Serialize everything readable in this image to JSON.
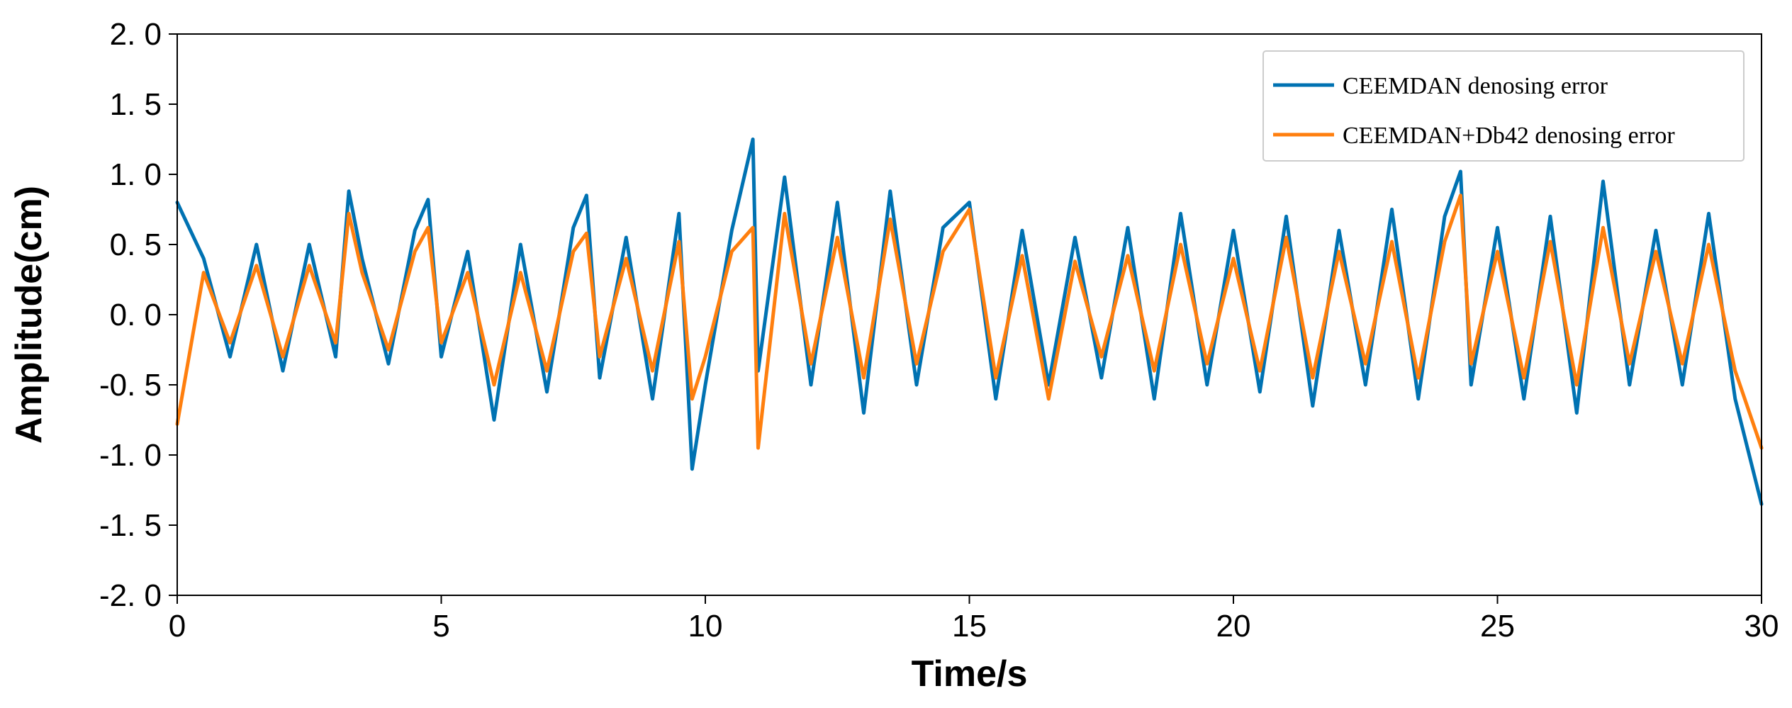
{
  "chart_data": {
    "type": "line",
    "title": "",
    "xlabel": "Time/s",
    "ylabel": "Amplitude(cm)",
    "xlim": [
      0,
      30
    ],
    "ylim": [
      -2.0,
      2.0
    ],
    "xticks": [
      0,
      5,
      10,
      15,
      20,
      25,
      30
    ],
    "xtick_labels": [
      "0",
      "5",
      "10",
      "15",
      "20",
      "25",
      "30"
    ],
    "yticks": [
      2.0,
      1.5,
      1.0,
      0.5,
      0.0,
      -0.5,
      -1.0,
      -1.5,
      -2.0
    ],
    "ytick_labels": [
      "2. 0",
      "1. 5",
      "1. 0",
      "0. 5",
      "0. 0",
      "-0. 5",
      "-1. 0",
      "-1. 5",
      "-2. 0"
    ],
    "grid": false,
    "legend_position": "top-right",
    "series": [
      {
        "name": "CEEMDAN denosing error",
        "color": "#0072B2",
        "x": [
          0,
          0.5,
          1,
          1.5,
          2,
          2.5,
          3,
          3.25,
          3.5,
          4,
          4.5,
          4.75,
          5,
          5.5,
          6,
          6.5,
          7,
          7.5,
          7.75,
          8,
          8.5,
          9,
          9.5,
          9.75,
          10,
          10.5,
          10.9,
          11,
          11.5,
          12,
          12.5,
          13,
          13.5,
          14,
          14.5,
          15,
          15.5,
          16,
          16.5,
          17,
          17.5,
          18,
          18.5,
          19,
          19.5,
          20,
          20.5,
          21,
          21.5,
          22,
          22.5,
          23,
          23.5,
          24,
          24.3,
          24.5,
          25,
          25.5,
          26,
          26.5,
          27,
          27.5,
          28,
          28.5,
          29,
          29.5,
          30
        ],
        "values": [
          0.8,
          0.4,
          -0.3,
          0.5,
          -0.4,
          0.5,
          -0.3,
          0.88,
          0.4,
          -0.35,
          0.6,
          0.82,
          -0.3,
          0.45,
          -0.75,
          0.5,
          -0.55,
          0.62,
          0.85,
          -0.45,
          0.55,
          -0.6,
          0.72,
          -1.1,
          -0.5,
          0.6,
          1.25,
          -0.4,
          0.98,
          -0.5,
          0.8,
          -0.7,
          0.88,
          -0.5,
          0.62,
          0.8,
          -0.6,
          0.6,
          -0.5,
          0.55,
          -0.45,
          0.62,
          -0.6,
          0.72,
          -0.5,
          0.6,
          -0.55,
          0.7,
          -0.65,
          0.6,
          -0.5,
          0.75,
          -0.6,
          0.7,
          1.02,
          -0.5,
          0.62,
          -0.6,
          0.7,
          -0.7,
          0.95,
          -0.5,
          0.6,
          -0.5,
          0.72,
          -0.6,
          -1.35
        ]
      },
      {
        "name": "CEEMDAN+Db42 denosing error",
        "color": "#FF7F0E",
        "x": [
          0,
          0.5,
          1,
          1.5,
          2,
          2.5,
          3,
          3.25,
          3.5,
          4,
          4.5,
          4.75,
          5,
          5.5,
          6,
          6.5,
          7,
          7.5,
          7.75,
          8,
          8.5,
          9,
          9.5,
          9.75,
          10,
          10.5,
          10.9,
          11,
          11.5,
          12,
          12.5,
          13,
          13.5,
          14,
          14.5,
          15,
          15.5,
          16,
          16.5,
          17,
          17.5,
          18,
          18.5,
          19,
          19.5,
          20,
          20.5,
          21,
          21.5,
          22,
          22.5,
          23,
          23.5,
          24,
          24.3,
          24.5,
          25,
          25.5,
          26,
          26.5,
          27,
          27.5,
          28,
          28.5,
          29,
          29.5,
          30
        ],
        "values": [
          -0.78,
          0.3,
          -0.2,
          0.35,
          -0.3,
          0.35,
          -0.2,
          0.72,
          0.3,
          -0.25,
          0.45,
          0.62,
          -0.2,
          0.3,
          -0.5,
          0.3,
          -0.4,
          0.45,
          0.58,
          -0.3,
          0.4,
          -0.4,
          0.52,
          -0.6,
          -0.3,
          0.45,
          0.62,
          -0.95,
          0.72,
          -0.35,
          0.55,
          -0.45,
          0.68,
          -0.35,
          0.45,
          0.75,
          -0.45,
          0.42,
          -0.6,
          0.38,
          -0.3,
          0.42,
          -0.4,
          0.5,
          -0.35,
          0.4,
          -0.4,
          0.55,
          -0.45,
          0.45,
          -0.35,
          0.52,
          -0.45,
          0.52,
          0.85,
          -0.35,
          0.45,
          -0.45,
          0.52,
          -0.5,
          0.62,
          -0.35,
          0.45,
          -0.35,
          0.5,
          -0.4,
          -0.95
        ]
      }
    ]
  }
}
